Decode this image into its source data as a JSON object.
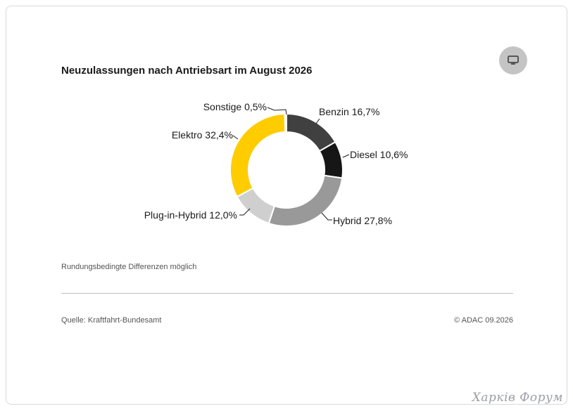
{
  "title": "Neuzulassungen nach Antriebsart im August 2026",
  "note": "Rundungsbedingte Differenzen möglich",
  "source": "Quelle: Kraftfahrt-Bundesamt",
  "copyright": "© ADAC 09.2026",
  "watermark": "Харків Форум",
  "fullscreen_icon": "monitor-icon",
  "chart_data": {
    "type": "pie",
    "donut": true,
    "categories": [
      "Benzin",
      "Diesel",
      "Hybrid",
      "Plug-in-Hybrid",
      "Elektro",
      "Sonstige"
    ],
    "values": [
      16.7,
      10.6,
      27.8,
      12.0,
      32.4,
      0.5
    ],
    "labels": [
      "Benzin 16,7%",
      "Diesel 10,6%",
      "Hybrid 27,8%",
      "Plug-in-Hybrid 12,0%",
      "Elektro 32,4%",
      "Sonstige 0,5%"
    ],
    "colors": [
      "#404040",
      "#161616",
      "#999999",
      "#cfcfcf",
      "#ffcc00",
      "#ffffff"
    ],
    "slice_border_color": "#ffffff",
    "start": "12 o'clock, clockwise"
  }
}
